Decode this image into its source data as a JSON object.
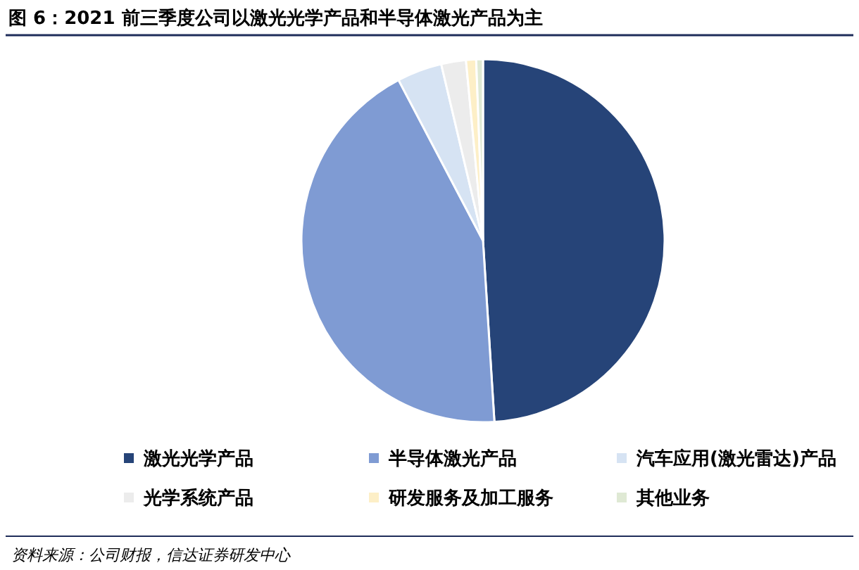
{
  "chart_data": {
    "type": "pie",
    "title": "图 6：2021 前三季度公司以激光光学产品和半导体激光产品为主",
    "categories": [
      "激光光学产品",
      "半导体激光产品",
      "汽车应用(激光雷达)产品",
      "光学系统产品",
      "研发服务及加工服务",
      "其他业务"
    ],
    "values": [
      49.0,
      43.3,
      4.0,
      2.2,
      0.9,
      0.6
    ],
    "colors": [
      "#264478",
      "#7f9bd3",
      "#d6e3f3",
      "#ececec",
      "#fdefc7",
      "#dfe9d4"
    ],
    "legend": "bottom",
    "annotations": [
      "资料来源：公司财报，信达证券研发中心"
    ]
  }
}
